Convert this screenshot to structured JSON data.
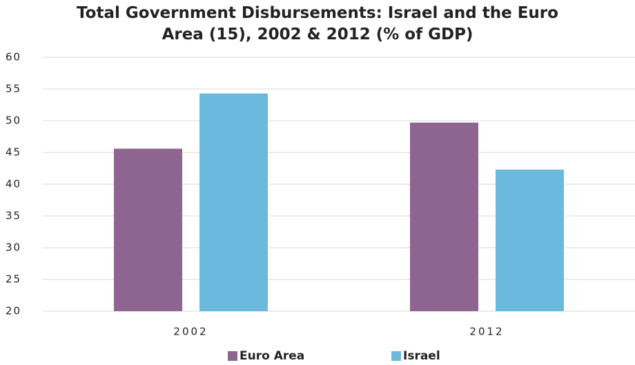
{
  "chart_data": {
    "type": "bar",
    "title": "Total Government Disbursements: Israel and the Euro Area (15), 2002 & 2012 (% of GDP)",
    "categories": [
      "2002",
      "2012"
    ],
    "series": [
      {
        "name": "Euro Area",
        "color": "#8e6490",
        "values": [
          45.6,
          49.7
        ]
      },
      {
        "name": "Israel",
        "color": "#6bbade",
        "values": [
          54.3,
          42.3
        ]
      }
    ],
    "ylim": [
      20,
      60
    ],
    "yticks": [
      20,
      25,
      30,
      35,
      40,
      45,
      50,
      55,
      60
    ],
    "grid": true,
    "legend": "bottom"
  }
}
